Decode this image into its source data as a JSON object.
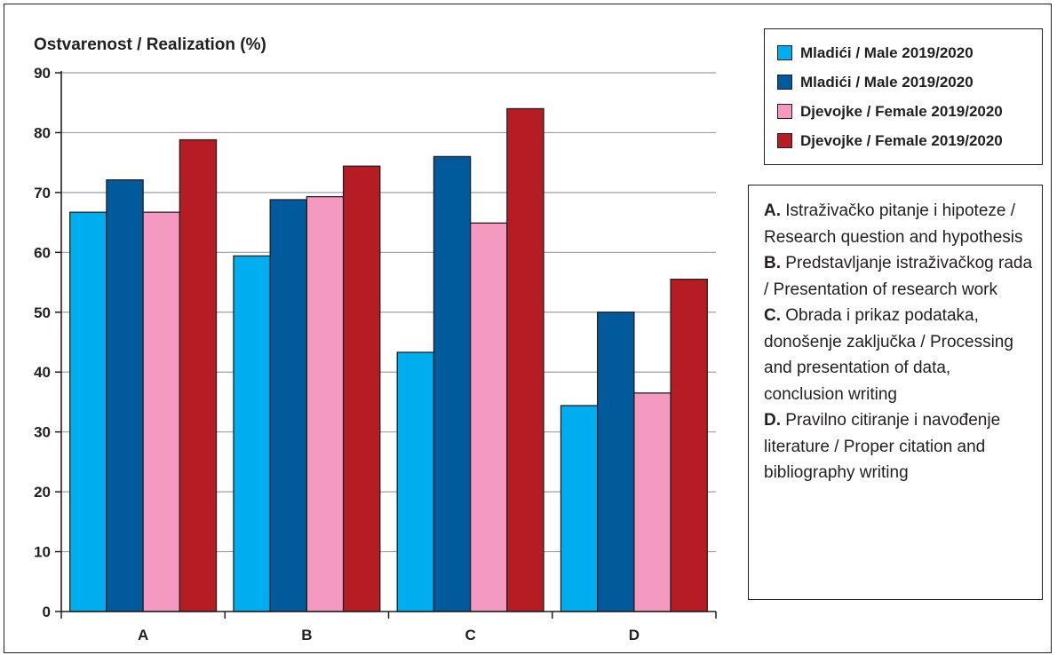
{
  "chart_data": {
    "type": "bar",
    "ylabel": "Ostvarenost / Realization (%)",
    "xlabel": "",
    "categories": [
      "A",
      "B",
      "C",
      "D"
    ],
    "ylim": [
      0,
      90
    ],
    "yticks": [
      0,
      10,
      20,
      30,
      40,
      50,
      60,
      70,
      80,
      90
    ],
    "grid": true,
    "legend_position": "top-right",
    "series": [
      {
        "name": "Mladići / Male 2019/2020",
        "color": "#00aeef",
        "values": [
          66.7,
          59.4,
          43.3,
          34.4
        ]
      },
      {
        "name": "Mladići / Male 2019/2020",
        "color": "#005a9c",
        "values": [
          72.1,
          68.8,
          76.0,
          50.0
        ]
      },
      {
        "name": "Djevojke / Female 2019/2020",
        "color": "#f49ac1",
        "values": [
          66.7,
          69.3,
          64.9,
          36.5
        ]
      },
      {
        "name": "Djevojke / Female 2019/2020",
        "color": "#b51c23",
        "values": [
          78.8,
          74.4,
          84.0,
          55.5
        ]
      }
    ]
  },
  "notes": [
    {
      "letter": "A.",
      "text": "Istraživačko pitanje i hipoteze / Research question and hypothesis"
    },
    {
      "letter": "B.",
      "text": "Predstavljanje istraživačkog rada / Presentation of research work"
    },
    {
      "letter": "C.",
      "text": "Obrada i prikaz podataka, donošenje zaključka / Processing and presentation of data, conclusion writing"
    },
    {
      "letter": "D.",
      "text": "Pravilno citiranje i navođenje literature / Proper citation and bibliography writing"
    }
  ]
}
